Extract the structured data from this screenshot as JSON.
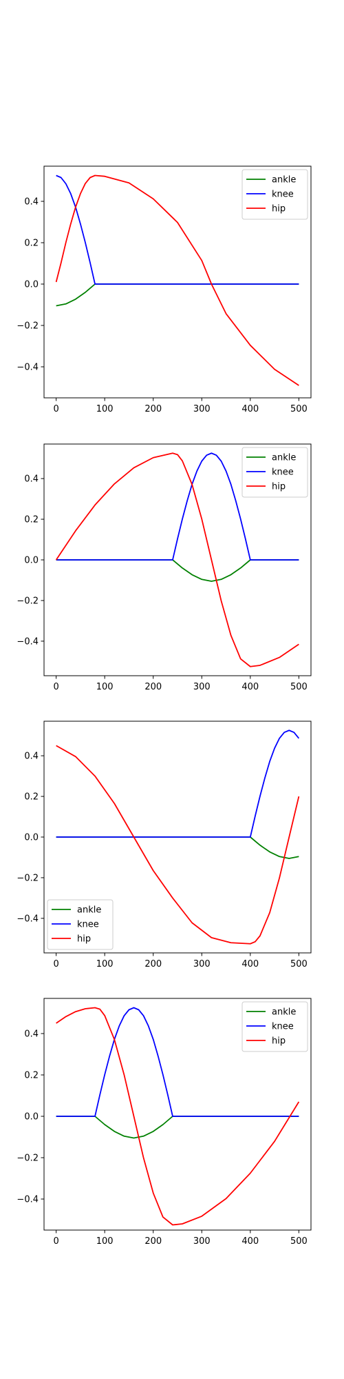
{
  "chart_data": [
    {
      "type": "line",
      "legend": "upper right",
      "xlim": [
        -25,
        525
      ],
      "ylim": [
        -0.55,
        0.57
      ],
      "xticks": [
        0,
        100,
        200,
        300,
        400,
        500
      ],
      "yticks": [
        -0.4,
        -0.2,
        0.0,
        0.2,
        0.4
      ],
      "xtick_labels": [
        "0",
        "100",
        "200",
        "300",
        "400",
        "500"
      ],
      "ytick_labels": [
        "−0.4",
        "−0.2",
        "0.0",
        "0.2",
        "0.4"
      ],
      "series": [
        {
          "name": "ankle",
          "color": "#008000",
          "x": [
            0,
            20,
            40,
            60,
            80,
            500
          ],
          "y": [
            -0.105,
            -0.096,
            -0.073,
            -0.04,
            0.0,
            0.0
          ]
        },
        {
          "name": "knee",
          "color": "#0000ff",
          "x": [
            0,
            10,
            20,
            30,
            40,
            50,
            60,
            70,
            80,
            500
          ],
          "y": [
            0.525,
            0.515,
            0.485,
            0.437,
            0.372,
            0.291,
            0.201,
            0.103,
            0.0,
            0.0
          ]
        },
        {
          "name": "hip",
          "color": "#ff0000",
          "x": [
            0,
            10,
            20,
            30,
            40,
            50,
            60,
            70,
            80,
            100,
            150,
            200,
            250,
            300,
            320,
            350,
            400,
            450,
            500
          ],
          "y": [
            0.01,
            0.102,
            0.201,
            0.291,
            0.372,
            0.437,
            0.486,
            0.515,
            0.525,
            0.521,
            0.489,
            0.412,
            0.298,
            0.114,
            0.0,
            -0.143,
            -0.296,
            -0.412,
            -0.49
          ]
        }
      ]
    },
    {
      "type": "line",
      "legend": "upper right",
      "xlim": [
        -25,
        525
      ],
      "ylim": [
        -0.57,
        0.57
      ],
      "xticks": [
        0,
        100,
        200,
        300,
        400,
        500
      ],
      "yticks": [
        -0.4,
        -0.2,
        0.0,
        0.2,
        0.4
      ],
      "xtick_labels": [
        "0",
        "100",
        "200",
        "300",
        "400",
        "500"
      ],
      "ytick_labels": [
        "−0.4",
        "−0.2",
        "0.0",
        "0.2",
        "0.4"
      ],
      "series": [
        {
          "name": "ankle",
          "color": "#008000",
          "x": [
            0,
            240,
            260,
            280,
            300,
            320,
            340,
            360,
            380,
            400,
            500
          ],
          "y": [
            0.0,
            0.0,
            -0.04,
            -0.073,
            -0.096,
            -0.105,
            -0.096,
            -0.073,
            -0.04,
            0.0,
            0.0
          ]
        },
        {
          "name": "knee",
          "color": "#0000ff",
          "x": [
            0,
            240,
            250,
            260,
            270,
            280,
            290,
            300,
            310,
            320,
            330,
            340,
            350,
            360,
            370,
            380,
            390,
            400,
            500
          ],
          "y": [
            0.0,
            0.0,
            0.103,
            0.201,
            0.291,
            0.372,
            0.437,
            0.486,
            0.515,
            0.525,
            0.515,
            0.486,
            0.437,
            0.372,
            0.291,
            0.201,
            0.103,
            0.0,
            0.0
          ]
        },
        {
          "name": "hip",
          "color": "#ff0000",
          "x": [
            0,
            40,
            80,
            120,
            160,
            200,
            240,
            250,
            260,
            280,
            300,
            320,
            340,
            360,
            380,
            400,
            420,
            460,
            500
          ],
          "y": [
            0.0,
            0.143,
            0.27,
            0.374,
            0.453,
            0.503,
            0.525,
            0.518,
            0.487,
            0.371,
            0.201,
            0.0,
            -0.201,
            -0.371,
            -0.487,
            -0.525,
            -0.519,
            -0.48,
            -0.415
          ]
        }
      ]
    },
    {
      "type": "line",
      "legend": "lower left",
      "xlim": [
        -25,
        525
      ],
      "ylim": [
        -0.57,
        0.57
      ],
      "xticks": [
        0,
        100,
        200,
        300,
        400,
        500
      ],
      "yticks": [
        -0.4,
        -0.2,
        0.0,
        0.2,
        0.4
      ],
      "xtick_labels": [
        "0",
        "100",
        "200",
        "300",
        "400",
        "500"
      ],
      "ytick_labels": [
        "−0.4",
        "−0.2",
        "0.0",
        "0.2",
        "0.4"
      ],
      "series": [
        {
          "name": "ankle",
          "color": "#008000",
          "x": [
            0,
            400,
            420,
            440,
            460,
            480,
            500
          ],
          "y": [
            0.0,
            0.0,
            -0.04,
            -0.073,
            -0.096,
            -0.105,
            -0.096
          ]
        },
        {
          "name": "knee",
          "color": "#0000ff",
          "x": [
            0,
            400,
            410,
            420,
            430,
            440,
            450,
            460,
            470,
            480,
            490,
            500
          ],
          "y": [
            0.0,
            0.0,
            0.103,
            0.201,
            0.291,
            0.372,
            0.437,
            0.486,
            0.515,
            0.525,
            0.515,
            0.486
          ]
        },
        {
          "name": "hip",
          "color": "#ff0000",
          "x": [
            0,
            40,
            80,
            120,
            160,
            200,
            240,
            280,
            320,
            360,
            400,
            410,
            420,
            440,
            460,
            480,
            500
          ],
          "y": [
            0.45,
            0.396,
            0.3,
            0.165,
            0.0,
            -0.165,
            -0.3,
            -0.422,
            -0.495,
            -0.52,
            -0.525,
            -0.515,
            -0.486,
            -0.372,
            -0.201,
            0.0,
            0.2
          ]
        }
      ]
    },
    {
      "type": "line",
      "legend": "upper right",
      "xlim": [
        -25,
        525
      ],
      "ylim": [
        -0.55,
        0.57
      ],
      "xticks": [
        0,
        100,
        200,
        300,
        400,
        500
      ],
      "yticks": [
        -0.4,
        -0.2,
        0.0,
        0.2,
        0.4
      ],
      "xtick_labels": [
        "0",
        "100",
        "200",
        "300",
        "400",
        "500"
      ],
      "ytick_labels": [
        "−0.4",
        "−0.2",
        "0.0",
        "0.2",
        "0.4"
      ],
      "series": [
        {
          "name": "ankle",
          "color": "#008000",
          "x": [
            0,
            80,
            100,
            120,
            140,
            160,
            180,
            200,
            220,
            240,
            500
          ],
          "y": [
            0.0,
            0.0,
            -0.04,
            -0.073,
            -0.096,
            -0.105,
            -0.096,
            -0.073,
            -0.04,
            0.0,
            0.0
          ]
        },
        {
          "name": "knee",
          "color": "#0000ff",
          "x": [
            0,
            80,
            90,
            100,
            110,
            120,
            130,
            140,
            150,
            160,
            170,
            180,
            190,
            200,
            210,
            220,
            230,
            240,
            500
          ],
          "y": [
            0.0,
            0.0,
            0.103,
            0.201,
            0.291,
            0.372,
            0.437,
            0.486,
            0.515,
            0.525,
            0.515,
            0.486,
            0.437,
            0.372,
            0.291,
            0.201,
            0.103,
            0.0,
            0.0
          ]
        },
        {
          "name": "hip",
          "color": "#ff0000",
          "x": [
            0,
            20,
            40,
            60,
            80,
            90,
            100,
            120,
            140,
            160,
            180,
            200,
            220,
            240,
            260,
            300,
            350,
            400,
            450,
            500
          ],
          "y": [
            0.45,
            0.482,
            0.506,
            0.52,
            0.525,
            0.518,
            0.487,
            0.371,
            0.201,
            0.0,
            -0.201,
            -0.371,
            -0.487,
            -0.525,
            -0.52,
            -0.483,
            -0.398,
            -0.275,
            -0.121,
            0.07
          ]
        }
      ]
    }
  ]
}
